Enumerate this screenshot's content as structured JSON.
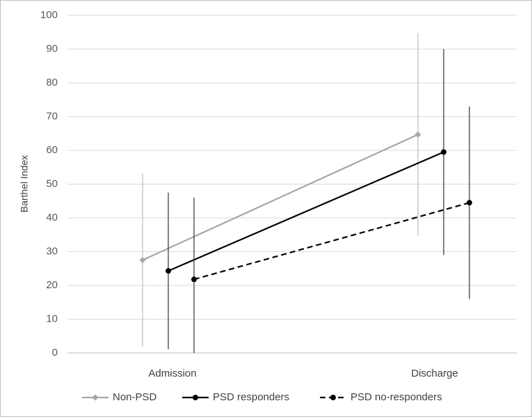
{
  "chart_data": {
    "type": "line",
    "y_label": "Barthel Index",
    "categories": [
      "Admission",
      "Discharge"
    ],
    "series": [
      {
        "name": "Non-PSD",
        "color": "#a6a6a6",
        "error_color": "#bfbfbf",
        "marker": "diamond",
        "dashed": false,
        "values": [
          27.5,
          64.7
        ],
        "errors": [
          25.7,
          30.0
        ]
      },
      {
        "name": "PSD responders",
        "color": "#000000",
        "error_color": "#404040",
        "marker": "circle",
        "dashed": false,
        "values": [
          24.3,
          59.5
        ],
        "errors": [
          23.2,
          30.5
        ]
      },
      {
        "name": "PSD no-responders",
        "color": "#000000",
        "error_color": "#404040",
        "marker": "circle",
        "dashed": true,
        "values": [
          21.8,
          44.5
        ],
        "errors": [
          24.2,
          28.5
        ]
      }
    ],
    "ylim": [
      0,
      100
    ],
    "yticks": [
      0,
      10,
      20,
      30,
      40,
      50,
      60,
      70,
      80,
      90,
      100
    ],
    "grid": true,
    "legend": "bottom"
  }
}
